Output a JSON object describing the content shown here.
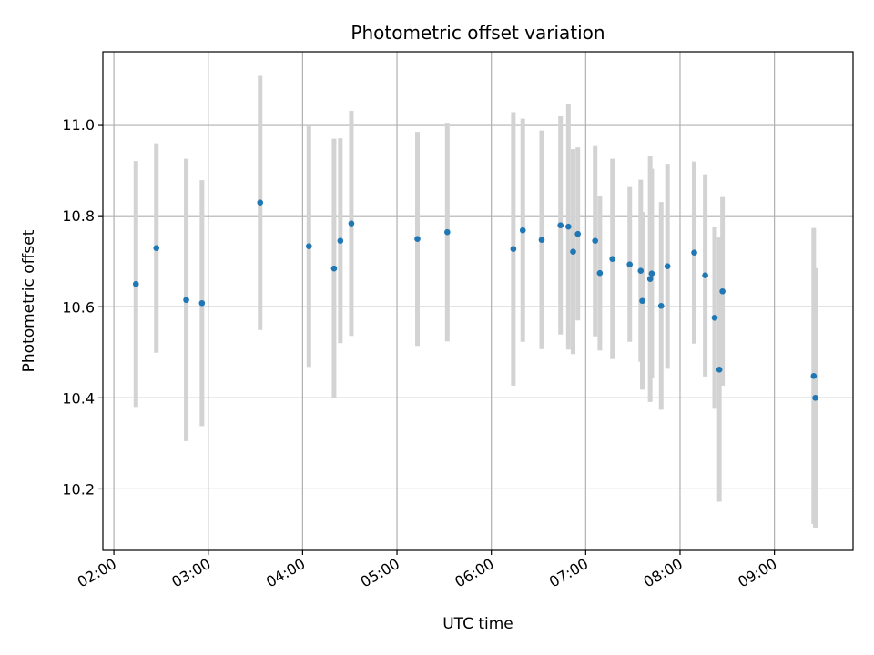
{
  "chart_data": {
    "type": "scatter",
    "title": "Photometric offset variation",
    "xlabel": "UTC time",
    "ylabel": "Photometric offset",
    "x_unit": "UTC time of day (HH:MM)",
    "xlim": [
      "01:53",
      "09:50"
    ],
    "ylim": [
      10.065,
      11.16
    ],
    "x_ticks": [
      "02:00",
      "03:00",
      "04:00",
      "05:00",
      "06:00",
      "07:00",
      "08:00",
      "09:00"
    ],
    "y_ticks": [
      10.2,
      10.4,
      10.6,
      10.8,
      11.0
    ],
    "y_tick_labels": [
      "10.2",
      "10.4",
      "10.6",
      "10.8",
      "11.0"
    ],
    "grid": true,
    "legend": "none",
    "point_color": "#1f77b4",
    "errorbar_color": "#d3d3d3",
    "series": [
      {
        "points": [
          {
            "x": "02:14",
            "y": 10.65,
            "err": 0.27
          },
          {
            "x": "02:27",
            "y": 10.729,
            "err": 0.23
          },
          {
            "x": "02:46",
            "y": 10.615,
            "err": 0.31
          },
          {
            "x": "02:56",
            "y": 10.608,
            "err": 0.27
          },
          {
            "x": "03:33",
            "y": 10.829,
            "err": 0.28
          },
          {
            "x": "04:04",
            "y": 10.733,
            "err": 0.265
          },
          {
            "x": "04:20",
            "y": 10.684,
            "err": 0.285
          },
          {
            "x": "04:24",
            "y": 10.745,
            "err": 0.225
          },
          {
            "x": "04:31",
            "y": 10.783,
            "err": 0.247
          },
          {
            "x": "05:13",
            "y": 10.749,
            "err": 0.235
          },
          {
            "x": "05:32",
            "y": 10.764,
            "err": 0.24
          },
          {
            "x": "06:14",
            "y": 10.727,
            "err": 0.3
          },
          {
            "x": "06:20",
            "y": 10.768,
            "err": 0.245
          },
          {
            "x": "06:32",
            "y": 10.747,
            "err": 0.24
          },
          {
            "x": "06:44",
            "y": 10.779,
            "err": 0.24
          },
          {
            "x": "06:49",
            "y": 10.776,
            "err": 0.27
          },
          {
            "x": "06:52",
            "y": 10.721,
            "err": 0.225
          },
          {
            "x": "06:55",
            "y": 10.76,
            "err": 0.19
          },
          {
            "x": "07:06",
            "y": 10.745,
            "err": 0.21
          },
          {
            "x": "07:09",
            "y": 10.674,
            "err": 0.17
          },
          {
            "x": "07:17",
            "y": 10.705,
            "err": 0.22
          },
          {
            "x": "07:28",
            "y": 10.693,
            "err": 0.17
          },
          {
            "x": "07:35",
            "y": 10.679,
            "err": 0.2
          },
          {
            "x": "07:36",
            "y": 10.613,
            "err": 0.195
          },
          {
            "x": "07:41",
            "y": 10.661,
            "err": 0.27
          },
          {
            "x": "07:42",
            "y": 10.673,
            "err": 0.23
          },
          {
            "x": "07:48",
            "y": 10.602,
            "err": 0.228
          },
          {
            "x": "07:52",
            "y": 10.689,
            "err": 0.225
          },
          {
            "x": "08:09",
            "y": 10.719,
            "err": 0.2
          },
          {
            "x": "08:16",
            "y": 10.669,
            "err": 0.222
          },
          {
            "x": "08:22",
            "y": 10.576,
            "err": 0.2
          },
          {
            "x": "08:25",
            "y": 10.462,
            "err": 0.29
          },
          {
            "x": "08:27",
            "y": 10.634,
            "err": 0.207
          },
          {
            "x": "09:25",
            "y": 10.448,
            "err": 0.325
          },
          {
            "x": "09:26",
            "y": 10.4,
            "err": 0.285
          }
        ]
      }
    ]
  }
}
